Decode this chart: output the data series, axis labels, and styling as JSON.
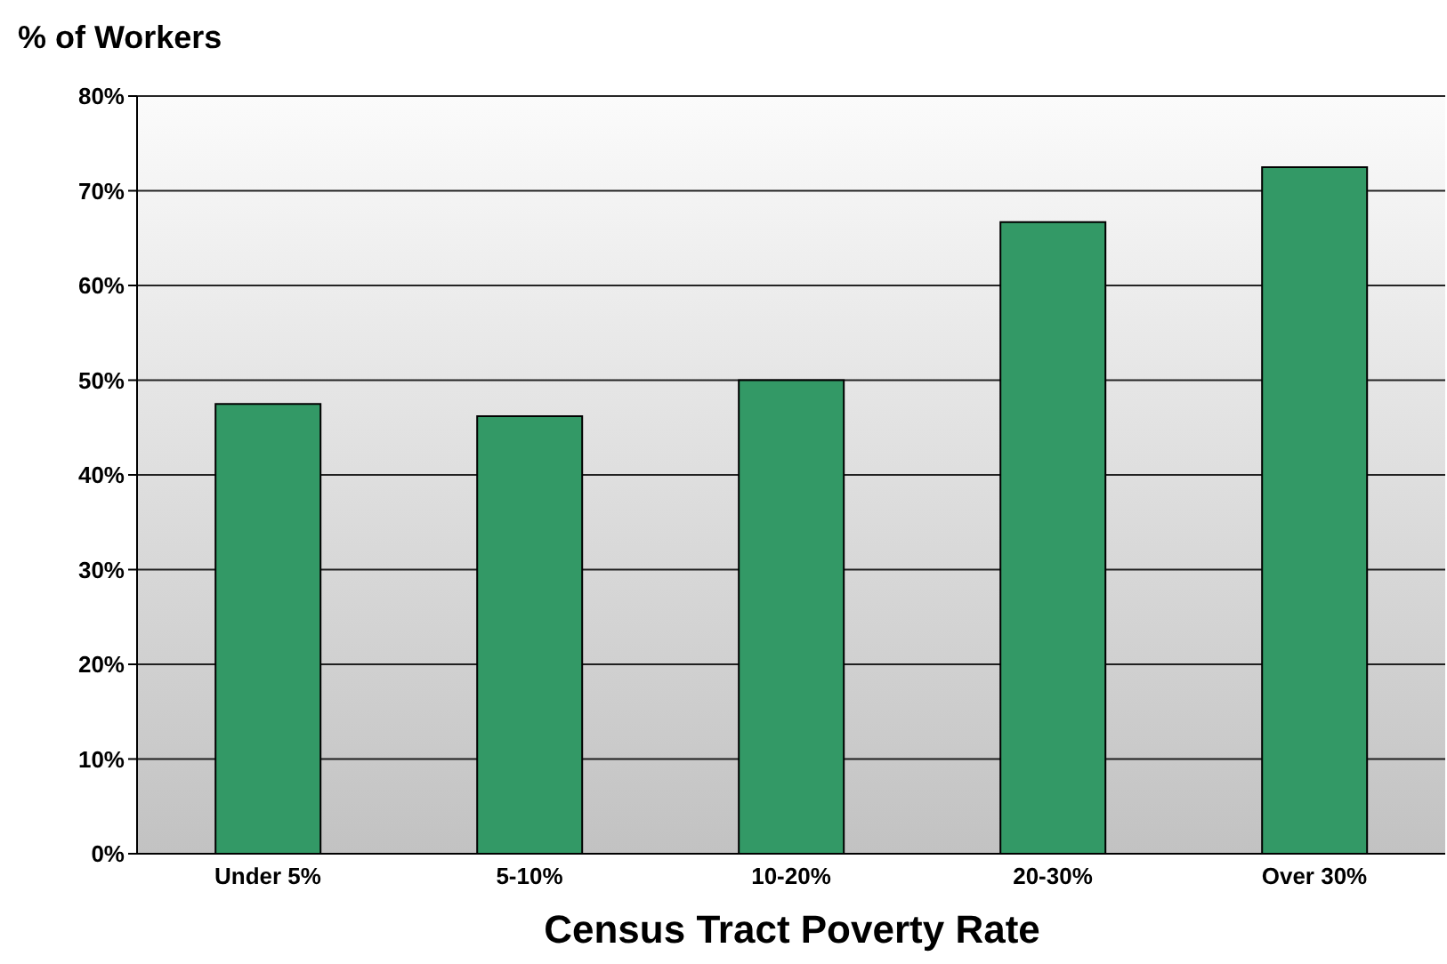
{
  "chart_data": {
    "type": "bar",
    "ylabel": "% of Workers",
    "xlabel": "Census Tract Poverty Rate",
    "categories": [
      "Under 5%",
      "5-10%",
      "10-20%",
      "20-30%",
      "Over 30%"
    ],
    "values": [
      47.5,
      46.2,
      50.0,
      66.7,
      72.5
    ],
    "color": "#339966",
    "ylim": [
      0,
      80
    ],
    "yticks": [
      {
        "value": 0,
        "label": "0%"
      },
      {
        "value": 10,
        "label": "10%"
      },
      {
        "value": 20,
        "label": "20%"
      },
      {
        "value": 30,
        "label": "30%"
      },
      {
        "value": 40,
        "label": "40%"
      },
      {
        "value": 50,
        "label": "50%"
      },
      {
        "value": 60,
        "label": "60%"
      },
      {
        "value": 70,
        "label": "70%"
      },
      {
        "value": 80,
        "label": "80%"
      }
    ],
    "grid": "y",
    "legend": false
  }
}
